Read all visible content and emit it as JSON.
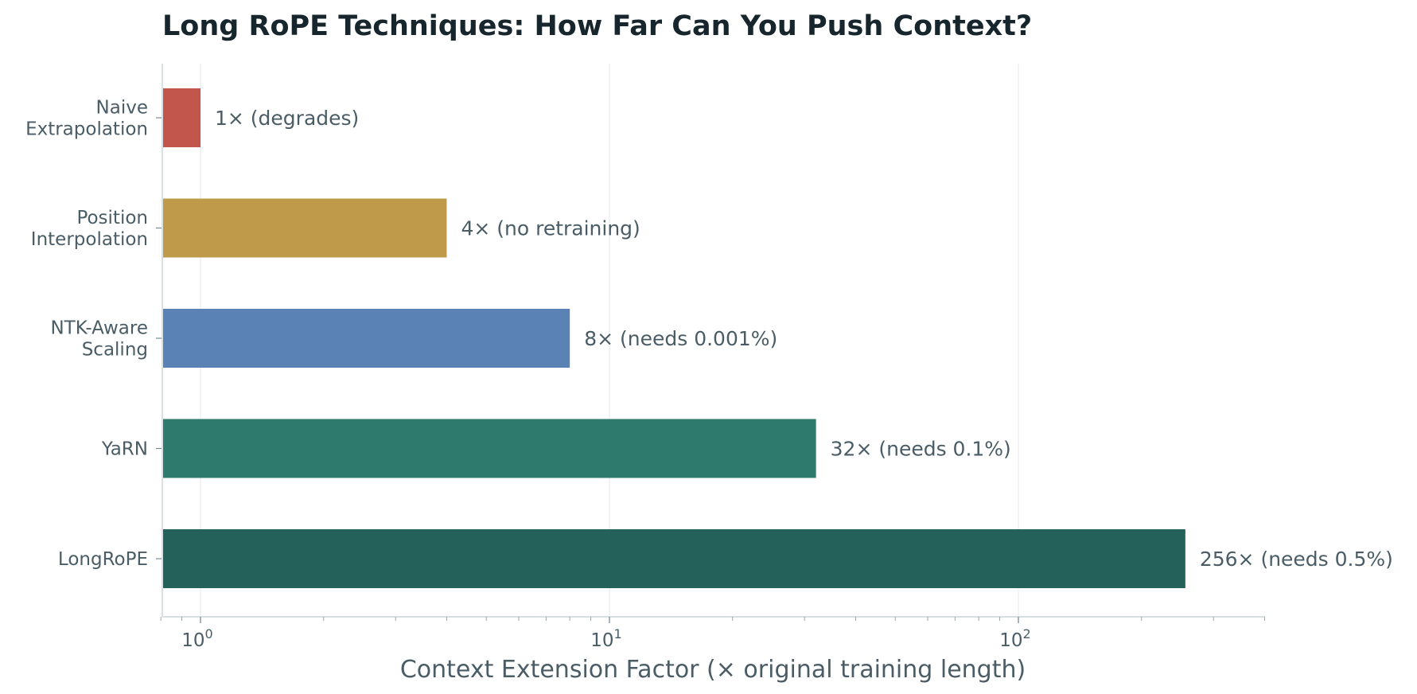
{
  "chart_data": {
    "type": "bar",
    "orientation": "horizontal",
    "title": "Long RoPE Techniques: How Far Can You Push Context?",
    "xlabel": "Context Extension Factor (× original training length)",
    "ylabel": "",
    "x_scale": "log",
    "xlim": [
      0.8,
      400
    ],
    "grid": "vertical-major",
    "categories": [
      "Naive\nExtrapolation",
      "Position\nInterpolation",
      "NTK-Aware\nScaling",
      "YaRN",
      "LongRoPE"
    ],
    "values": [
      1,
      4,
      8,
      32,
      256
    ],
    "bar_labels": [
      "1×  (degrades)",
      "4×  (no retraining)",
      "8×  (needs 0.001%)",
      "32×  (needs 0.1%)",
      "256×  (needs 0.5%)"
    ],
    "colors": [
      "#c2554c",
      "#bf9a4a",
      "#5b82b4",
      "#2e7b6e",
      "#23615a"
    ],
    "x_ticks": [
      {
        "value": 1,
        "base": "10",
        "exp": "0"
      },
      {
        "value": 10,
        "base": "10",
        "exp": "1"
      },
      {
        "value": 100,
        "base": "10",
        "exp": "2"
      }
    ]
  }
}
